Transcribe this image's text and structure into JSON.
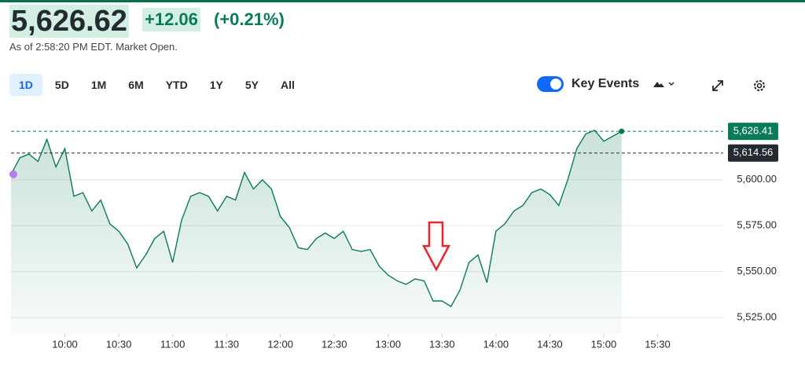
{
  "header": {
    "price": "5,626.62",
    "change": "+12.06",
    "change_percent": "(+0.21%)",
    "as_of": "As of 2:58:20 PM EDT. Market Open."
  },
  "ranges": [
    "1D",
    "5D",
    "1M",
    "6M",
    "YTD",
    "1Y",
    "5Y",
    "All"
  ],
  "controls": {
    "key_events": "Key Events"
  },
  "chart_data": {
    "type": "line",
    "color": "#0b7a5a",
    "x": [
      "9:30",
      "9:35",
      "9:40",
      "9:45",
      "9:50",
      "9:55",
      "10:00",
      "10:05",
      "10:10",
      "10:15",
      "10:20",
      "10:25",
      "10:30",
      "10:35",
      "10:40",
      "10:45",
      "10:50",
      "10:55",
      "11:00",
      "11:05",
      "11:10",
      "11:15",
      "11:20",
      "11:25",
      "11:30",
      "11:35",
      "11:40",
      "11:45",
      "11:50",
      "11:55",
      "12:00",
      "12:05",
      "12:10",
      "12:15",
      "12:20",
      "12:25",
      "12:30",
      "12:35",
      "12:40",
      "12:45",
      "12:50",
      "12:55",
      "13:00",
      "13:05",
      "13:10",
      "13:15",
      "13:20",
      "13:25",
      "13:30",
      "13:35",
      "13:40",
      "13:45",
      "13:50",
      "13:55",
      "14:00",
      "14:05",
      "14:10",
      "14:15",
      "14:20",
      "14:25",
      "14:30",
      "14:35",
      "14:40",
      "14:45",
      "14:50",
      "14:55",
      "15:00",
      "15:10"
    ],
    "values": [
      5603,
      5612,
      5614,
      5610,
      5622,
      5607,
      5617,
      5591,
      5593,
      5583,
      5589,
      5576,
      5572,
      5565,
      5552,
      5559,
      5568,
      5572,
      5555,
      5578,
      5591,
      5593,
      5591,
      5583,
      5591,
      5589,
      5604,
      5595,
      5600,
      5595,
      5580,
      5574,
      5563,
      5562,
      5568,
      5571,
      5568,
      5572,
      5562,
      5561,
      5562,
      5553,
      5548,
      5545,
      5543,
      5546,
      5545,
      5534,
      5534,
      5531,
      5540,
      5555,
      5559,
      5544,
      5572,
      5576,
      5583,
      5586,
      5593,
      5595,
      5592,
      5586,
      5600,
      5617,
      5625,
      5627,
      5621,
      5626.41
    ],
    "xlim": [
      "9:30",
      "16:00"
    ],
    "xticks": [
      "10:00",
      "10:30",
      "11:00",
      "11:30",
      "12:00",
      "12:30",
      "13:00",
      "13:30",
      "14:00",
      "14:30",
      "15:00",
      "15:30"
    ],
    "ylim": [
      5516,
      5638
    ],
    "yticks": [
      {
        "value": 5525,
        "label": "5,525.00"
      },
      {
        "value": 5550,
        "label": "5,550.00"
      },
      {
        "value": 5575,
        "label": "5,575.00"
      },
      {
        "value": 5600,
        "label": "5,600.00"
      }
    ],
    "reference_lines": [
      {
        "value": 5626.41,
        "label": "5,626.41",
        "color": "#0b7a5a"
      },
      {
        "value": 5614.56,
        "label": "5,614.56",
        "color": "#232a31"
      }
    ],
    "grid": true
  }
}
